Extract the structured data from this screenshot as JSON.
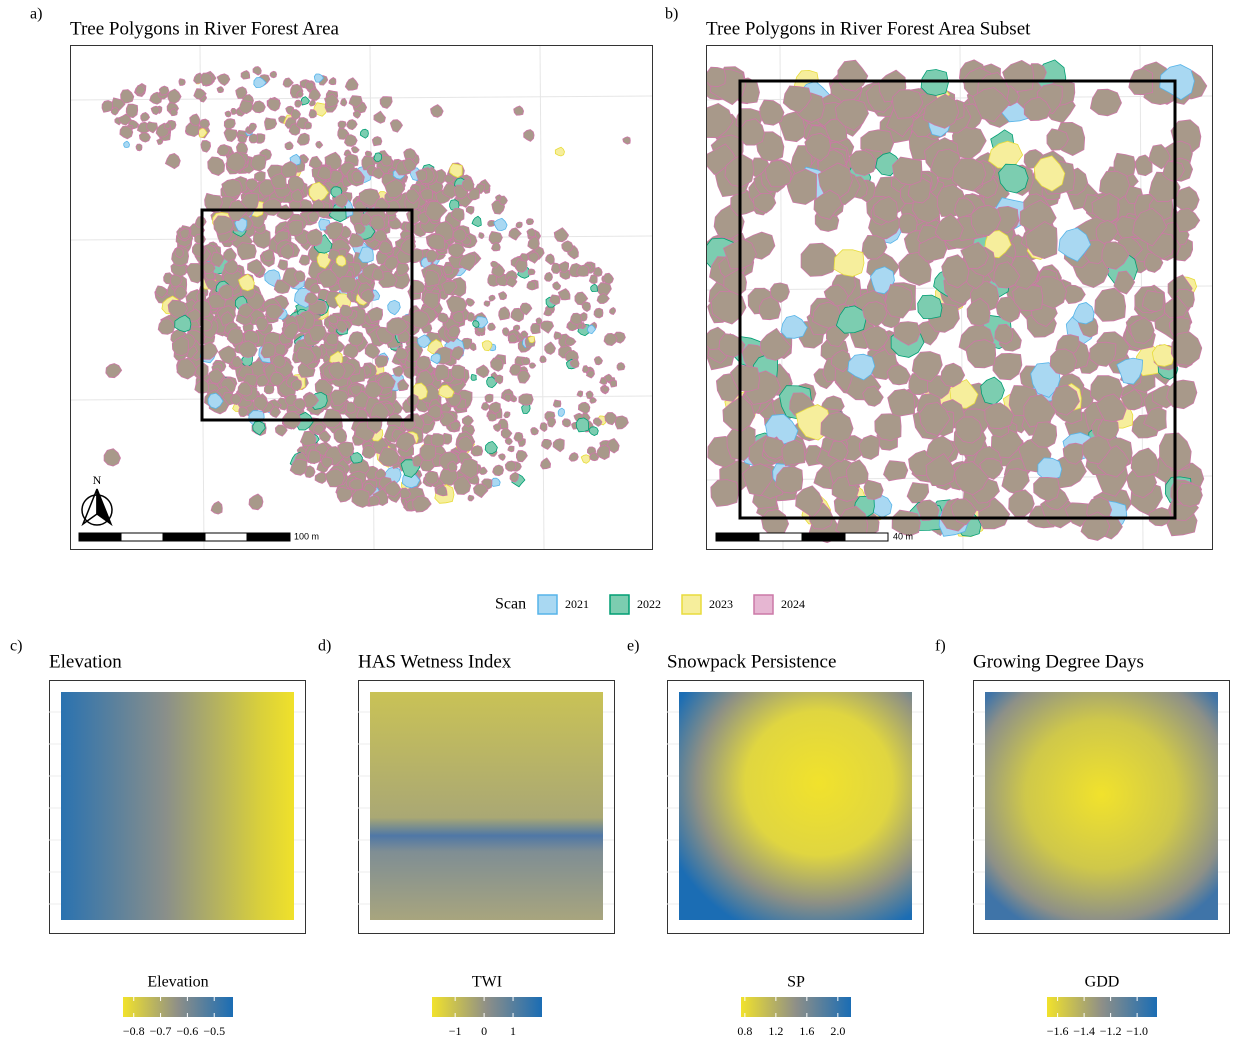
{
  "panels": [
    {
      "letter": "a)",
      "title": "Tree Polygons in River Forest Area",
      "scale_label": "100 m"
    },
    {
      "letter": "b)",
      "title": "Tree Polygons in River Forest Area Subset",
      "scale_label": "40 m"
    }
  ],
  "north_label": "N",
  "legend": {
    "title": "Scan",
    "items": [
      {
        "name": "2021",
        "fill": "#a9d8f2",
        "stroke": "#56b4e9"
      },
      {
        "name": "2022",
        "fill": "#7ccdb0",
        "stroke": "#009e73"
      },
      {
        "name": "2023",
        "fill": "#f6ee9c",
        "stroke": "#e8dc3c"
      },
      {
        "name": "2024",
        "fill": "#e6b6d2",
        "stroke": "#cc79a7"
      }
    ]
  },
  "crown_fill": "#a8998a",
  "colorbar_colors": [
    "#f1e22c",
    "#8e8f88",
    "#1b6db4"
  ],
  "rasters": [
    {
      "letter": "c)",
      "title": "Elevation",
      "legend_title": "Elevation",
      "lim": [
        -0.84,
        -0.43
      ],
      "ticks": [
        {
          "value": -0.8,
          "label": "−0.8"
        },
        {
          "value": -0.7,
          "label": "−0.7"
        },
        {
          "value": -0.6,
          "label": "−0.6"
        },
        {
          "value": -0.5,
          "label": "−0.5"
        }
      ]
    },
    {
      "letter": "d)",
      "title": "HAS Wetness Index",
      "legend_title": "TWI",
      "lim": [
        -1.8,
        2.0
      ],
      "ticks": [
        {
          "value": -1,
          "label": "−1"
        },
        0,
        1
      ]
    },
    {
      "letter": "e)",
      "title": "Snowpack Persistence",
      "legend_title": "SP",
      "lim": [
        0.75,
        2.17
      ],
      "ticks": [
        0.8,
        1.2,
        1.6,
        {
          "value": 2.0,
          "label": "2.0"
        }
      ]
    },
    {
      "letter": "f)",
      "title": "Growing Degree Days",
      "legend_title": "GDD",
      "lim": [
        -1.68,
        -0.85
      ],
      "ticks": [
        {
          "value": -1.6,
          "label": "−1.6"
        },
        {
          "value": -1.4,
          "label": "−1.4"
        },
        {
          "value": -1.2,
          "label": "−1.2"
        },
        {
          "value": -1.0,
          "label": "−1.0"
        }
      ]
    }
  ]
}
